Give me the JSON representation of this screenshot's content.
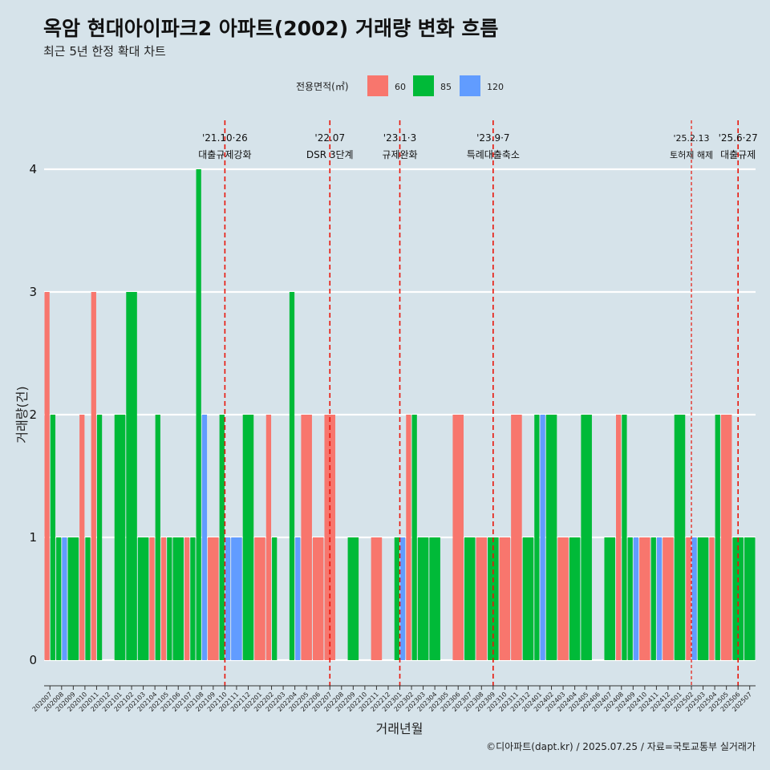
{
  "chart_data": {
    "type": "bar",
    "title": "옥암 현대아이파크2 아파트(2002) 거래량 변화 흐름",
    "subtitle": "최근 5년 한정 확대 차트",
    "xlabel": "거래년월",
    "ylabel": "거래량(건)",
    "ylim": [
      0,
      4
    ],
    "y_ticks": [
      0,
      1,
      2,
      3,
      4
    ],
    "grid": true,
    "legend_position": "top",
    "legend_title": "전용면적(㎡)",
    "categories": [
      "202007",
      "202008",
      "202009",
      "202010",
      "202011",
      "202012",
      "202101",
      "202102",
      "202103",
      "202104",
      "202105",
      "202106",
      "202107",
      "202108",
      "202109",
      "202110",
      "202111",
      "202112",
      "202201",
      "202202",
      "202203",
      "202204",
      "202205",
      "202206",
      "202207",
      "202208",
      "202209",
      "202210",
      "202211",
      "202212",
      "202301",
      "202302",
      "202303",
      "202304",
      "202305",
      "202306",
      "202307",
      "202308",
      "202309",
      "202310",
      "202311",
      "202312",
      "202401",
      "202402",
      "202403",
      "202404",
      "202405",
      "202406",
      "202407",
      "202408",
      "202409",
      "202410",
      "202411",
      "202412",
      "202501",
      "202502",
      "202503",
      "202504",
      "202505",
      "202506",
      "202507"
    ],
    "series": [
      {
        "name": "60",
        "color": "#f8766d",
        "values": [
          3,
          0,
          0,
          2,
          3,
          0,
          0,
          0,
          0,
          1,
          1,
          0,
          1,
          0,
          1,
          0,
          0,
          0,
          1,
          2,
          0,
          0,
          2,
          1,
          2,
          0,
          0,
          0,
          1,
          0,
          0,
          2,
          0,
          0,
          0,
          2,
          0,
          1,
          0,
          1,
          2,
          0,
          0,
          0,
          1,
          0,
          0,
          0,
          0,
          2,
          0,
          1,
          0,
          1,
          0,
          1,
          0,
          1,
          2,
          0,
          0
        ]
      },
      {
        "name": "85",
        "color": "#00ba38",
        "values": [
          2,
          1,
          1,
          1,
          2,
          0,
          2,
          3,
          1,
          2,
          1,
          1,
          1,
          4,
          0,
          2,
          0,
          2,
          0,
          1,
          0,
          3,
          0,
          0,
          0,
          0,
          1,
          0,
          0,
          0,
          1,
          2,
          1,
          1,
          0,
          0,
          1,
          0,
          1,
          0,
          0,
          1,
          2,
          2,
          0,
          1,
          2,
          0,
          1,
          2,
          1,
          0,
          1,
          0,
          2,
          0,
          1,
          2,
          0,
          1,
          1
        ]
      },
      {
        "name": "120",
        "color": "#619cff",
        "values": [
          0,
          1,
          0,
          0,
          0,
          0,
          0,
          0,
          0,
          0,
          0,
          0,
          0,
          2,
          0,
          1,
          1,
          0,
          0,
          0,
          0,
          1,
          0,
          0,
          0,
          0,
          0,
          0,
          0,
          0,
          1,
          0,
          0,
          0,
          0,
          0,
          0,
          0,
          0,
          0,
          0,
          0,
          2,
          0,
          0,
          0,
          0,
          0,
          0,
          0,
          1,
          0,
          1,
          0,
          0,
          1,
          0,
          0,
          0,
          0,
          0
        ]
      }
    ],
    "events": [
      {
        "date": "'21.10·26",
        "label": "대출규제강화",
        "month": "202110"
      },
      {
        "date": "'22.07",
        "label": "DSR 3단계",
        "month": "202207"
      },
      {
        "date": "'23.1·3",
        "label": "규제완화",
        "month": "202301"
      },
      {
        "date": "'23.9·7",
        "label": "특례대출축소",
        "month": "202309"
      },
      {
        "date": "'25.2.13",
        "label": "토허제 해제",
        "month": "202502"
      },
      {
        "date": "'25.6·27",
        "label": "대출규제",
        "month": "202506"
      }
    ],
    "caption": "©디아파트(dapt.kr) / 2025.07.25 / 자료=국토교통부 실거래가"
  }
}
